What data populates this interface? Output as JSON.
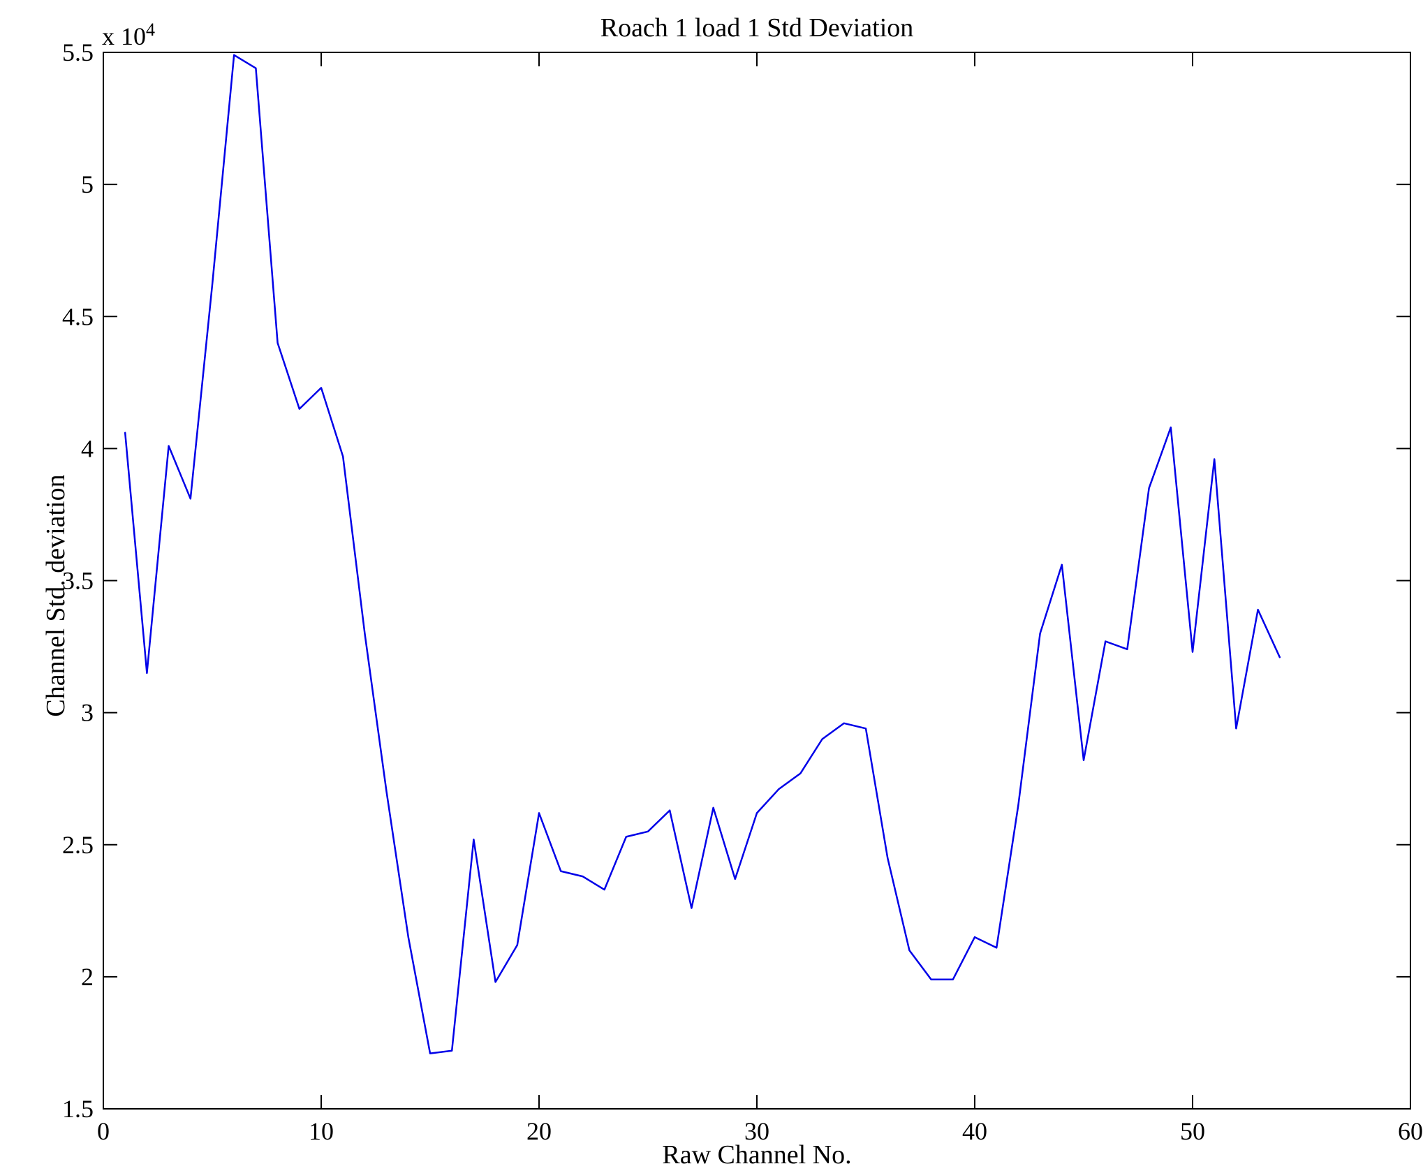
{
  "chart_data": {
    "type": "line",
    "title": "Roach 1 load 1 Std Deviation",
    "xlabel": "Raw Channel No.",
    "ylabel": "Channel Std. deviation",
    "y_multiplier": {
      "base": "x 10",
      "exp": "4"
    },
    "xlim": [
      0,
      60
    ],
    "ylim_e4": [
      1.5,
      5.5
    ],
    "x_ticks": [
      0,
      10,
      20,
      30,
      40,
      50,
      60
    ],
    "y_ticks_e4": [
      1.5,
      2,
      2.5,
      3,
      3.5,
      4,
      4.5,
      5,
      5.5
    ],
    "grid": false,
    "line_color": "#0000E8",
    "x": [
      1,
      2,
      3,
      4,
      5,
      6,
      7,
      8,
      9,
      10,
      11,
      12,
      13,
      14,
      15,
      16,
      17,
      18,
      19,
      20,
      21,
      22,
      23,
      24,
      25,
      26,
      27,
      28,
      29,
      30,
      31,
      32,
      33,
      34,
      35,
      36,
      37,
      38,
      39,
      40,
      41,
      42,
      43,
      44,
      45,
      46,
      47,
      48,
      49,
      50,
      51,
      52,
      53,
      54
    ],
    "y_e4": [
      4.06,
      3.15,
      4.01,
      3.81,
      4.62,
      5.49,
      5.44,
      4.4,
      4.15,
      4.23,
      3.97,
      3.3,
      2.7,
      2.15,
      1.71,
      1.72,
      2.52,
      1.98,
      2.12,
      2.62,
      2.4,
      2.38,
      2.33,
      2.53,
      2.55,
      2.63,
      2.26,
      2.64,
      2.37,
      2.62,
      2.71,
      2.77,
      2.9,
      2.96,
      2.94,
      2.45,
      2.1,
      1.99,
      1.99,
      2.15,
      2.11,
      2.65,
      3.3,
      3.56,
      2.82,
      3.27,
      3.24,
      3.85,
      4.08,
      3.23,
      3.96,
      2.94,
      3.39,
      3.21
    ]
  }
}
